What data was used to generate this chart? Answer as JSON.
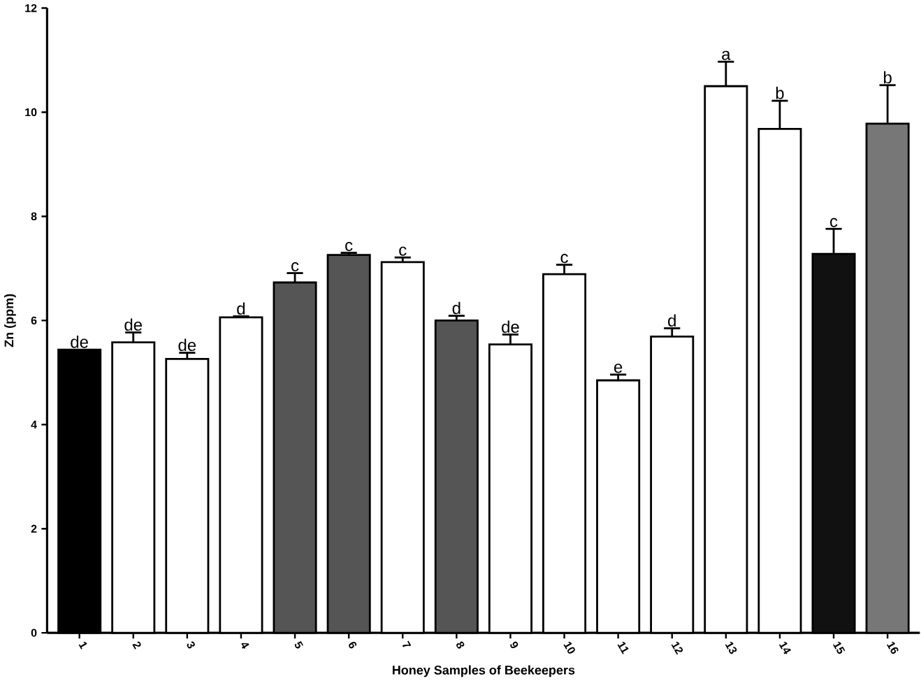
{
  "chart_data": {
    "type": "bar",
    "xlabel": "Honey Samples of Beekeepers",
    "ylabel": "Zn (ppm)",
    "categories": [
      "1",
      "2",
      "3",
      "4",
      "5",
      "6",
      "7",
      "8",
      "9",
      "10",
      "11",
      "12",
      "13",
      "14",
      "15",
      "16"
    ],
    "values": [
      5.44,
      5.58,
      5.26,
      6.06,
      6.73,
      7.26,
      7.12,
      6.0,
      5.54,
      6.89,
      4.85,
      5.69,
      10.5,
      9.68,
      7.28,
      9.78
    ],
    "colors": [
      "#000000",
      "#ffffff",
      "#ffffff",
      "#ffffff",
      "#555555",
      "#555555",
      "#ffffff",
      "#555555",
      "#ffffff",
      "#ffffff",
      "#ffffff",
      "#ffffff",
      "#ffffff",
      "#ffffff",
      "#111111",
      "#777777"
    ],
    "errors": [
      null,
      [
        5.58,
        5.77
      ],
      [
        5.26,
        5.38
      ],
      [
        6.06,
        6.08
      ],
      [
        6.73,
        6.91
      ],
      [
        7.26,
        7.3
      ],
      [
        7.12,
        7.21
      ],
      [
        6.0,
        6.09
      ],
      [
        5.54,
        5.73
      ],
      [
        6.89,
        7.07
      ],
      [
        4.85,
        4.96
      ],
      [
        5.69,
        5.85
      ],
      [
        10.5,
        10.97
      ],
      [
        9.68,
        10.22
      ],
      [
        7.28,
        7.76
      ],
      [
        9.78,
        10.52
      ]
    ],
    "ylim": [
      0,
      12
    ],
    "yticks": [
      0,
      2,
      4,
      6,
      8,
      10,
      12
    ],
    "annotations": [
      {
        "text": "de",
        "x": "1",
        "y": 5.44
      },
      {
        "text": "de",
        "x": "2",
        "y": 5.77
      },
      {
        "text": "de",
        "x": "3",
        "y": 5.38
      },
      {
        "text": "d",
        "x": "4",
        "y": 6.08
      },
      {
        "text": "c",
        "x": "5",
        "y": 6.91
      },
      {
        "text": "c",
        "x": "6",
        "y": 7.3
      },
      {
        "text": "c",
        "x": "7",
        "y": 7.21
      },
      {
        "text": "d",
        "x": "8",
        "y": 6.09
      },
      {
        "text": "de",
        "x": "9",
        "y": 5.73
      },
      {
        "text": "c",
        "x": "10",
        "y": 7.07
      },
      {
        "text": "e",
        "x": "11",
        "y": 4.96
      },
      {
        "text": "d",
        "x": "12",
        "y": 5.85
      },
      {
        "text": "a",
        "x": "13",
        "y": 10.97
      },
      {
        "text": "b",
        "x": "14",
        "y": 10.22
      },
      {
        "text": "c",
        "x": "15",
        "y": 7.76
      },
      {
        "text": "b",
        "x": "16",
        "y": 10.52
      }
    ]
  }
}
